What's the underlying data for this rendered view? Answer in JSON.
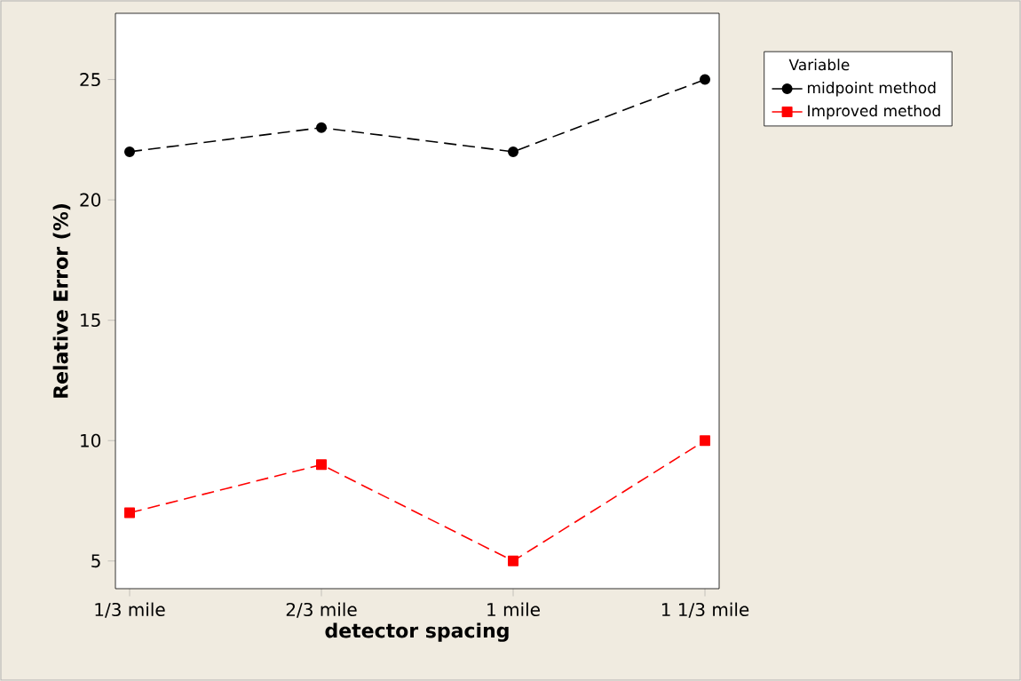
{
  "chart_data": {
    "type": "line",
    "xlabel": "detector spacing",
    "ylabel": "Relative Error (%)",
    "legend_title": "Variable",
    "categories": [
      "1/3 mile",
      "2/3 mile",
      "1 mile",
      "1 1/3 mile"
    ],
    "series": [
      {
        "name": "midpoint method",
        "color": "#000000",
        "marker": "circle",
        "values": [
          22,
          23,
          22,
          25
        ]
      },
      {
        "name": "Improved method",
        "color": "#ff0000",
        "marker": "square",
        "values": [
          7,
          9,
          5,
          10
        ]
      }
    ],
    "ylim": [
      3.85,
      27.75
    ],
    "yticks": [
      5,
      10,
      15,
      20,
      25
    ],
    "grid": false,
    "legend": "top right",
    "line_style": "dashed"
  }
}
